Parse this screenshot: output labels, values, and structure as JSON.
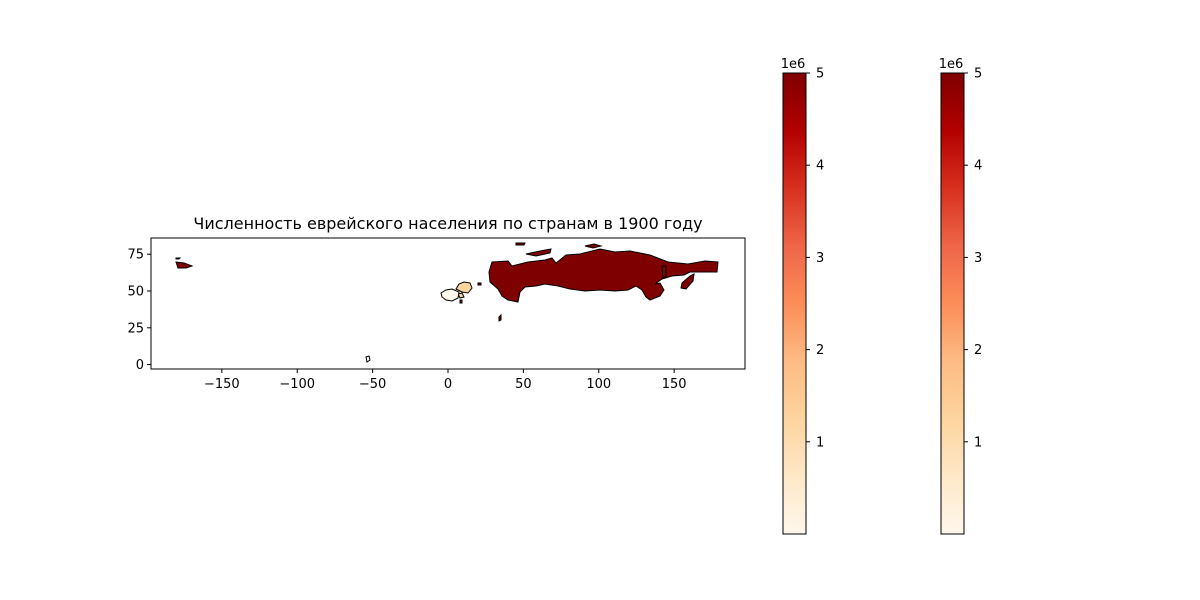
{
  "chart_data": {
    "type": "choropleth",
    "title": "Численность еврейского населения по странам в 1900 году",
    "xlabel": "",
    "ylabel": "",
    "xlim": [
      -197,
      197
    ],
    "ylim": [
      -3,
      86
    ],
    "x_ticks": [
      -150,
      -100,
      -50,
      0,
      50,
      100,
      150
    ],
    "x_tick_labels": [
      "−150",
      "−100",
      "−50",
      "0",
      "50",
      "100",
      "150"
    ],
    "y_ticks": [
      0,
      25,
      50,
      75
    ],
    "y_tick_labels": [
      "0",
      "25",
      "50",
      "75"
    ],
    "colormap": "OrRd",
    "value_range": [
      0,
      5000000
    ],
    "regions": [
      {
        "region": "large eastern territory",
        "value": 5000000,
        "color": "#7f0000"
      },
      {
        "region": "central europe",
        "value": 900000,
        "color": "#fdd49e"
      },
      {
        "region": "western europe",
        "value": 100000,
        "color": "#fff7ec"
      },
      {
        "region": "south america island",
        "value": 0,
        "color": "#fff7ec"
      }
    ],
    "colorbars": [
      {
        "multiplier": "1e6",
        "ticks": [
          1,
          2,
          3,
          4,
          5
        ],
        "tick_labels": [
          "1",
          "2",
          "3",
          "4",
          "5"
        ],
        "range": [
          0,
          5
        ]
      },
      {
        "multiplier": "1e6",
        "ticks": [
          1,
          2,
          3,
          4,
          5
        ],
        "tick_labels": [
          "1",
          "2",
          "3",
          "4",
          "5"
        ],
        "range": [
          0,
          5
        ]
      }
    ]
  }
}
